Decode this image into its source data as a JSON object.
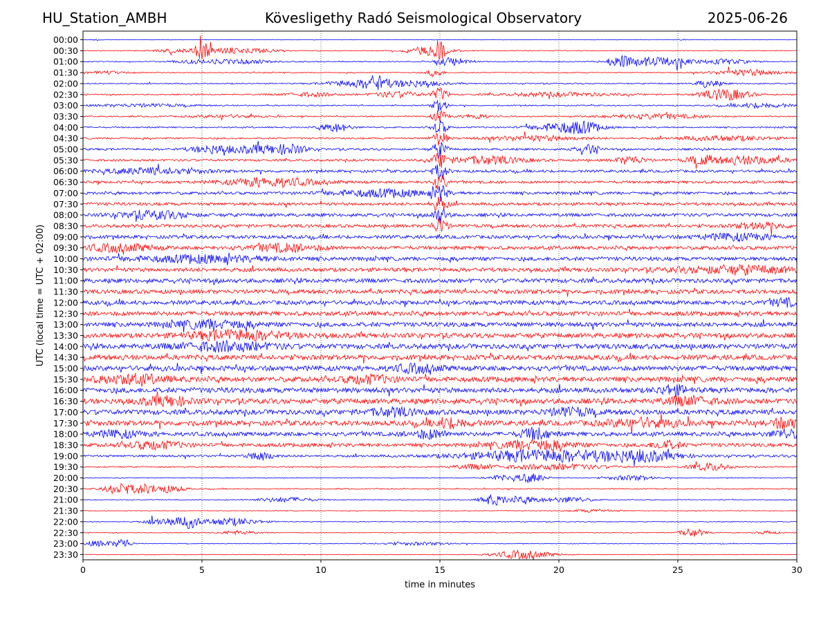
{
  "header": {
    "station": "HU_Station_AMBH",
    "observatory": "Kövesligethy Radó Seismological Observatory",
    "date": "2025-06-26"
  },
  "chart_data": {
    "type": "line",
    "title": "Kövesligethy Radó Seismological Observatory",
    "xlabel": "time in minutes",
    "ylabel": "UTC (local time = UTC + 02:00)",
    "xlim": [
      0,
      30
    ],
    "x_ticks": [
      "0",
      "5",
      "10",
      "15",
      "20",
      "25",
      "30"
    ],
    "x_tick_values": [
      0,
      5,
      10,
      15,
      20,
      25,
      30
    ],
    "grid": "vertical dotted at x ticks",
    "trace_colors": [
      "#0000ff",
      "#ff0000"
    ],
    "rows": [
      {
        "label": "00:00",
        "noise": 0.04,
        "events": [
          {
            "t": 0.6,
            "w": 0.3,
            "a": 0.12
          },
          {
            "t": 25.2,
            "w": 0.4,
            "a": 0.1
          }
        ]
      },
      {
        "label": "00:30",
        "noise": 0.08,
        "events": [
          {
            "t": 3.8,
            "w": 0.9,
            "a": 0.35
          },
          {
            "t": 5.0,
            "w": 0.35,
            "a": 1.6
          },
          {
            "t": 6.2,
            "w": 0.9,
            "a": 0.6
          },
          {
            "t": 7.6,
            "w": 0.7,
            "a": 0.35
          },
          {
            "t": 14.5,
            "w": 1.0,
            "a": 0.8
          },
          {
            "t": 15.0,
            "w": 0.2,
            "a": 1.8
          }
        ]
      },
      {
        "label": "01:00",
        "noise": 0.1,
        "events": [
          {
            "t": 5.2,
            "w": 1.2,
            "a": 0.4
          },
          {
            "t": 7.0,
            "w": 1.0,
            "a": 0.35
          },
          {
            "t": 15.5,
            "w": 0.6,
            "a": 0.9
          },
          {
            "t": 22.6,
            "w": 0.6,
            "a": 1.2
          },
          {
            "t": 23.8,
            "w": 0.6,
            "a": 0.8
          },
          {
            "t": 24.9,
            "w": 0.8,
            "a": 0.7
          },
          {
            "t": 27.0,
            "w": 1.0,
            "a": 0.5
          }
        ]
      },
      {
        "label": "01:30",
        "noise": 0.1,
        "events": [
          {
            "t": 1.0,
            "w": 1.0,
            "a": 0.25
          },
          {
            "t": 14.8,
            "w": 0.3,
            "a": 0.9
          },
          {
            "t": 28.0,
            "w": 1.5,
            "a": 0.6
          }
        ]
      },
      {
        "label": "02:00",
        "noise": 0.12,
        "events": [
          {
            "t": 11.2,
            "w": 1.0,
            "a": 0.6
          },
          {
            "t": 12.3,
            "w": 0.5,
            "a": 1.4
          },
          {
            "t": 13.8,
            "w": 1.2,
            "a": 0.7
          },
          {
            "t": 26.3,
            "w": 0.5,
            "a": 0.8
          }
        ]
      },
      {
        "label": "02:30",
        "noise": 0.12,
        "events": [
          {
            "t": 9.5,
            "w": 1.2,
            "a": 0.4
          },
          {
            "t": 13.2,
            "w": 1.0,
            "a": 0.6
          },
          {
            "t": 15.0,
            "w": 0.3,
            "a": 1.4
          },
          {
            "t": 20.0,
            "w": 2.5,
            "a": 0.4
          },
          {
            "t": 27.0,
            "w": 1.0,
            "a": 1.2
          }
        ]
      },
      {
        "label": "03:00",
        "noise": 0.12,
        "events": [
          {
            "t": 2.5,
            "w": 2.0,
            "a": 0.3
          },
          {
            "t": 15.0,
            "w": 0.3,
            "a": 1.2
          },
          {
            "t": 28.5,
            "w": 1.2,
            "a": 0.5
          }
        ]
      },
      {
        "label": "03:30",
        "noise": 0.12,
        "events": [
          {
            "t": 6.0,
            "w": 1.5,
            "a": 0.3
          },
          {
            "t": 15.0,
            "w": 0.3,
            "a": 1.3
          },
          {
            "t": 16.5,
            "w": 0.5,
            "a": 0.6
          },
          {
            "t": 24.0,
            "w": 2.0,
            "a": 0.5
          }
        ]
      },
      {
        "label": "04:00",
        "noise": 0.14,
        "events": [
          {
            "t": 10.6,
            "w": 0.6,
            "a": 0.9
          },
          {
            "t": 15.0,
            "w": 0.3,
            "a": 1.4
          },
          {
            "t": 20.0,
            "w": 1.2,
            "a": 0.8
          },
          {
            "t": 21.0,
            "w": 0.8,
            "a": 0.9
          }
        ]
      },
      {
        "label": "04:30",
        "noise": 0.16,
        "events": [
          {
            "t": 15.0,
            "w": 0.3,
            "a": 1.5
          },
          {
            "t": 19.0,
            "w": 2.0,
            "a": 0.5
          },
          {
            "t": 27.0,
            "w": 2.0,
            "a": 0.5
          }
        ]
      },
      {
        "label": "05:00",
        "noise": 0.2,
        "events": [
          {
            "t": 5.5,
            "w": 1.0,
            "a": 0.8
          },
          {
            "t": 7.5,
            "w": 1.0,
            "a": 0.8
          },
          {
            "t": 8.8,
            "w": 0.6,
            "a": 0.9
          },
          {
            "t": 15.0,
            "w": 0.3,
            "a": 1.5
          },
          {
            "t": 21.2,
            "w": 0.5,
            "a": 0.8
          }
        ]
      },
      {
        "label": "05:30",
        "noise": 0.22,
        "events": [
          {
            "t": 15.0,
            "w": 0.3,
            "a": 1.5
          },
          {
            "t": 17.0,
            "w": 1.5,
            "a": 0.8
          },
          {
            "t": 23.0,
            "w": 0.6,
            "a": 0.8
          },
          {
            "t": 26.0,
            "w": 0.6,
            "a": 0.9
          },
          {
            "t": 28.0,
            "w": 1.5,
            "a": 0.8
          }
        ]
      },
      {
        "label": "06:00",
        "noise": 0.26,
        "events": [
          {
            "t": 3.0,
            "w": 2.0,
            "a": 0.6
          },
          {
            "t": 15.0,
            "w": 0.3,
            "a": 1.5
          }
        ]
      },
      {
        "label": "06:30",
        "noise": 0.26,
        "events": [
          {
            "t": 8.0,
            "w": 1.8,
            "a": 0.9
          },
          {
            "t": 15.0,
            "w": 0.3,
            "a": 1.5
          }
        ]
      },
      {
        "label": "07:00",
        "noise": 0.28,
        "events": [
          {
            "t": 12.5,
            "w": 2.0,
            "a": 0.7
          },
          {
            "t": 15.0,
            "w": 0.3,
            "a": 1.5
          }
        ]
      },
      {
        "label": "07:30",
        "noise": 0.3,
        "events": [
          {
            "t": 15.0,
            "w": 0.3,
            "a": 1.5
          }
        ]
      },
      {
        "label": "08:00",
        "noise": 0.32,
        "events": [
          {
            "t": 3.0,
            "w": 1.5,
            "a": 0.7
          },
          {
            "t": 15.0,
            "w": 0.3,
            "a": 1.5
          }
        ]
      },
      {
        "label": "08:30",
        "noise": 0.32,
        "events": [
          {
            "t": 15.0,
            "w": 0.3,
            "a": 1.5
          },
          {
            "t": 28.5,
            "w": 1.0,
            "a": 0.6
          }
        ]
      },
      {
        "label": "09:00",
        "noise": 0.34,
        "events": [
          {
            "t": 27.5,
            "w": 1.5,
            "a": 0.6
          }
        ]
      },
      {
        "label": "09:30",
        "noise": 0.36,
        "events": [
          {
            "t": 1.5,
            "w": 1.5,
            "a": 0.7
          },
          {
            "t": 8.5,
            "w": 1.5,
            "a": 0.7
          }
        ]
      },
      {
        "label": "10:00",
        "noise": 0.38,
        "events": [
          {
            "t": 5.0,
            "w": 3.0,
            "a": 0.6
          }
        ]
      },
      {
        "label": "10:30",
        "noise": 0.4,
        "events": [
          {
            "t": 27.5,
            "w": 2.5,
            "a": 0.7
          }
        ]
      },
      {
        "label": "11:00",
        "noise": 0.42,
        "events": []
      },
      {
        "label": "11:30",
        "noise": 0.42,
        "events": []
      },
      {
        "label": "12:00",
        "noise": 0.42,
        "events": [
          {
            "t": 29.5,
            "w": 0.6,
            "a": 0.7
          }
        ]
      },
      {
        "label": "12:30",
        "noise": 0.44,
        "events": []
      },
      {
        "label": "13:00",
        "noise": 0.46,
        "events": [
          {
            "t": 5.5,
            "w": 1.5,
            "a": 0.8
          }
        ]
      },
      {
        "label": "13:30",
        "noise": 0.48,
        "events": [
          {
            "t": 6.5,
            "w": 2.0,
            "a": 0.9
          }
        ]
      },
      {
        "label": "14:00",
        "noise": 0.5,
        "events": [
          {
            "t": 6.0,
            "w": 2.0,
            "a": 0.8
          }
        ]
      },
      {
        "label": "14:30",
        "noise": 0.5,
        "events": []
      },
      {
        "label": "15:00",
        "noise": 0.5,
        "events": [
          {
            "t": 14.0,
            "w": 1.0,
            "a": 0.7
          }
        ]
      },
      {
        "label": "15:30",
        "noise": 0.52,
        "events": [
          {
            "t": 2.0,
            "w": 1.5,
            "a": 0.8
          },
          {
            "t": 12.0,
            "w": 1.0,
            "a": 0.7
          }
        ]
      },
      {
        "label": "16:00",
        "noise": 0.52,
        "events": [
          {
            "t": 24.8,
            "w": 0.6,
            "a": 0.9
          }
        ]
      },
      {
        "label": "16:30",
        "noise": 0.52,
        "events": [
          {
            "t": 3.5,
            "w": 1.0,
            "a": 0.8
          },
          {
            "t": 25.5,
            "w": 1.0,
            "a": 0.8
          }
        ]
      },
      {
        "label": "17:00",
        "noise": 0.5,
        "events": [
          {
            "t": 13.0,
            "w": 1.0,
            "a": 0.7
          },
          {
            "t": 20.5,
            "w": 1.0,
            "a": 0.7
          }
        ]
      },
      {
        "label": "17:30",
        "noise": 0.5,
        "events": [
          {
            "t": 15.5,
            "w": 0.8,
            "a": 0.9
          },
          {
            "t": 23.5,
            "w": 1.5,
            "a": 0.8
          },
          {
            "t": 29.5,
            "w": 0.6,
            "a": 0.9
          }
        ]
      },
      {
        "label": "18:00",
        "noise": 0.42,
        "events": [
          {
            "t": 1.5,
            "w": 1.0,
            "a": 0.6
          },
          {
            "t": 14.5,
            "w": 0.8,
            "a": 0.8
          },
          {
            "t": 19.0,
            "w": 0.6,
            "a": 1.2
          },
          {
            "t": 29.5,
            "w": 0.6,
            "a": 0.8
          }
        ]
      },
      {
        "label": "18:30",
        "noise": 0.36,
        "events": [
          {
            "t": 3.0,
            "w": 1.2,
            "a": 0.7
          },
          {
            "t": 19.0,
            "w": 1.5,
            "a": 1.0
          },
          {
            "t": 24.5,
            "w": 0.6,
            "a": 0.8
          }
        ]
      },
      {
        "label": "19:00",
        "noise": 0.22,
        "events": [
          {
            "t": 7.5,
            "w": 0.5,
            "a": 1.0
          },
          {
            "t": 19.5,
            "w": 3.5,
            "a": 1.2
          },
          {
            "t": 23.5,
            "w": 1.5,
            "a": 0.9
          }
        ]
      },
      {
        "label": "19:30",
        "noise": 0.12,
        "events": [
          {
            "t": 16.5,
            "w": 1.0,
            "a": 0.5
          },
          {
            "t": 20.0,
            "w": 2.0,
            "a": 0.6
          },
          {
            "t": 26.3,
            "w": 0.8,
            "a": 0.8
          }
        ]
      },
      {
        "label": "20:00",
        "noise": 0.08,
        "events": [
          {
            "t": 17.5,
            "w": 0.5,
            "a": 0.5
          },
          {
            "t": 18.8,
            "w": 0.6,
            "a": 1.0
          },
          {
            "t": 23.0,
            "w": 1.0,
            "a": 0.5
          }
        ]
      },
      {
        "label": "20:30",
        "noise": 0.1,
        "events": [
          {
            "t": 1.5,
            "w": 0.6,
            "a": 1.1
          },
          {
            "t": 2.6,
            "w": 0.6,
            "a": 0.9
          },
          {
            "t": 3.7,
            "w": 0.6,
            "a": 0.7
          }
        ]
      },
      {
        "label": "21:00",
        "noise": 0.08,
        "events": [
          {
            "t": 8.5,
            "w": 1.2,
            "a": 0.5
          },
          {
            "t": 17.2,
            "w": 0.5,
            "a": 1.0
          },
          {
            "t": 18.5,
            "w": 1.0,
            "a": 0.6
          },
          {
            "t": 20.5,
            "w": 0.8,
            "a": 0.6
          }
        ]
      },
      {
        "label": "21:30",
        "noise": 0.06,
        "events": [
          {
            "t": 21.5,
            "w": 1.0,
            "a": 0.3
          }
        ]
      },
      {
        "label": "22:00",
        "noise": 0.08,
        "events": [
          {
            "t": 3.5,
            "w": 0.8,
            "a": 0.8
          },
          {
            "t": 4.5,
            "w": 0.4,
            "a": 1.1
          },
          {
            "t": 6.2,
            "w": 1.2,
            "a": 0.8
          }
        ]
      },
      {
        "label": "22:30",
        "noise": 0.07,
        "events": [
          {
            "t": 6.5,
            "w": 0.8,
            "a": 0.4
          },
          {
            "t": 25.6,
            "w": 0.5,
            "a": 0.9
          },
          {
            "t": 28.8,
            "w": 0.4,
            "a": 0.4
          }
        ]
      },
      {
        "label": "23:00",
        "noise": 0.07,
        "events": [
          {
            "t": 0.7,
            "w": 0.7,
            "a": 0.6
          },
          {
            "t": 1.7,
            "w": 0.3,
            "a": 1.1
          },
          {
            "t": 14.0,
            "w": 1.5,
            "a": 0.3
          }
        ]
      },
      {
        "label": "23:30",
        "noise": 0.06,
        "events": [
          {
            "t": 18.5,
            "w": 1.2,
            "a": 0.9
          }
        ]
      }
    ]
  }
}
